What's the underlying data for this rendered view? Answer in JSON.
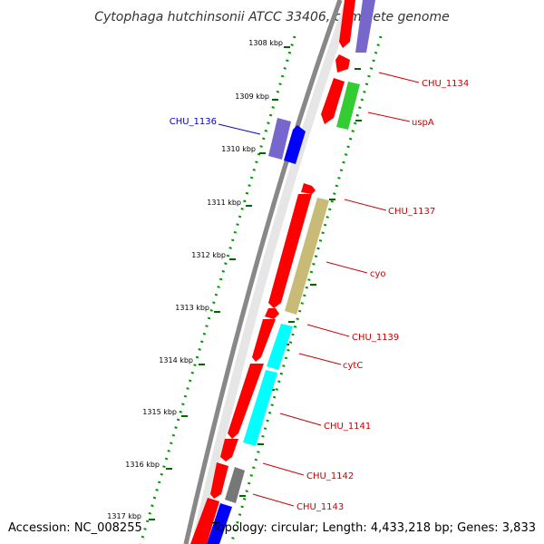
{
  "title": "Cytophaga hutchinsonii ATCC 33406, complete genome",
  "footer": {
    "accession": "Accession: NC_008255",
    "topology": "Topology: circular; Length: 4,433,218 bp; Genes: 3,833"
  },
  "ruler": {
    "labels": [
      "1308 kbp",
      "1309 kbp",
      "1310 kbp",
      "1311 kbp",
      "1312 kbp",
      "1313 kbp",
      "1314 kbp",
      "1315 kbp",
      "1316 kbp",
      "1317 kbp"
    ]
  },
  "gene_labels": [
    {
      "name": "CHU_1134",
      "color": "#cc0000"
    },
    {
      "name": "uspA",
      "color": "#cc0000"
    },
    {
      "name": "CHU_1136",
      "color": "#0000cc"
    },
    {
      "name": "CHU_1137",
      "color": "#cc0000"
    },
    {
      "name": "cyo",
      "color": "#cc0000"
    },
    {
      "name": "CHU_1139",
      "color": "#cc0000"
    },
    {
      "name": "cytC",
      "color": "#cc0000"
    },
    {
      "name": "CHU_1141",
      "color": "#cc0000"
    },
    {
      "name": "CHU_1142",
      "color": "#cc0000"
    },
    {
      "name": "CHU_1143",
      "color": "#cc0000"
    }
  ],
  "colors": {
    "cds": "#ff0000",
    "forward_gene": "#0000ff",
    "cog_purple": "#7766cc",
    "cog_green": "#33cc33",
    "cog_khaki": "#c8bb77",
    "cog_cyan": "#00ffff",
    "cog_gray": "#777777",
    "ruler_dots": "#009900",
    "backbone": "#888888"
  }
}
